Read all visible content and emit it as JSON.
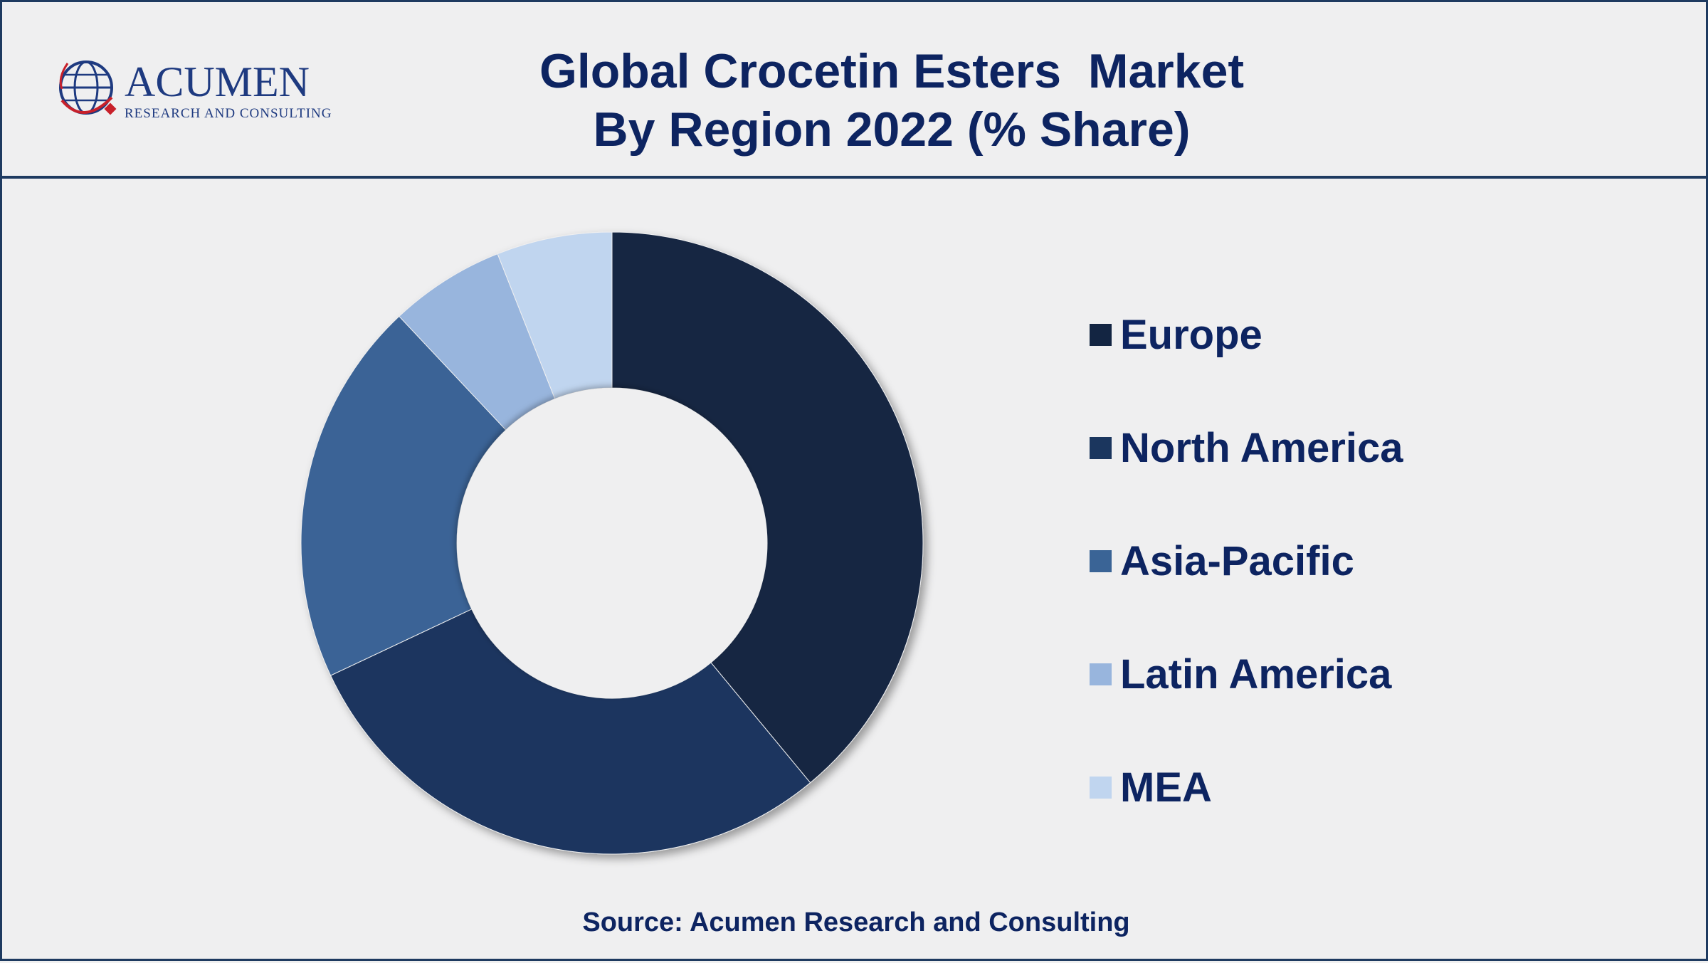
{
  "brand": {
    "name": "ACUMEN",
    "tagline": "RESEARCH AND CONSULTING"
  },
  "title": "Global Crocetin Esters  Market\nBy Region 2022 (% Share)",
  "source": "Source: Acumen Research and Consulting",
  "colors": {
    "title": "#0d2461",
    "border": "#1e3a60",
    "background": "#efeff0"
  },
  "chart_data": {
    "type": "pie",
    "style": "donut",
    "legend_position": "right",
    "categories": [
      "Europe",
      "North America",
      "Asia-Pacific",
      "Latin America",
      "MEA"
    ],
    "values": [
      39,
      29,
      20,
      6,
      6
    ],
    "unit": "%",
    "colors": [
      "#132542",
      "#1b365e",
      "#3a6496",
      "#98b5dd",
      "#c0d5ef"
    ]
  }
}
